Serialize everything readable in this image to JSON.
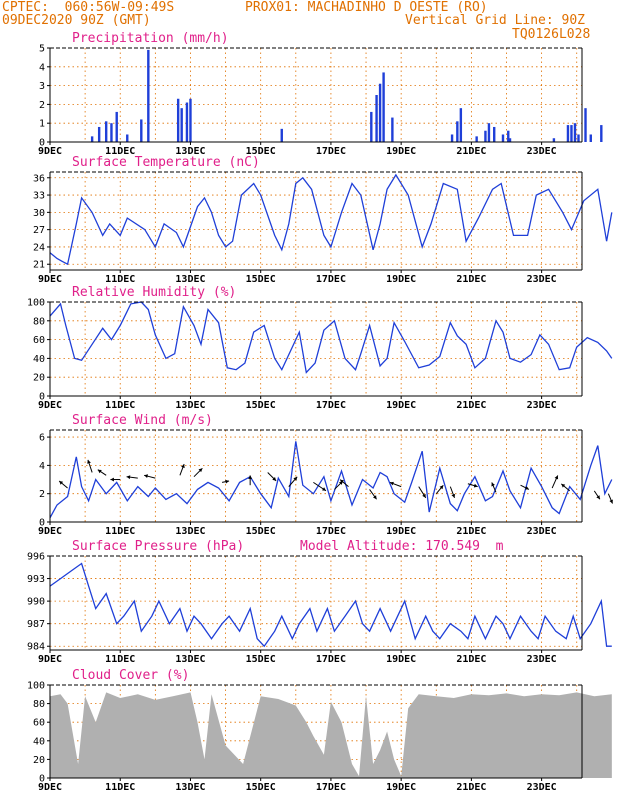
{
  "header": {
    "line1_left": "CPTEC:  060:56W-09:49S",
    "line1_right": "PROX01: MACHADINHO D OESTE (RO)",
    "line2_left": "09DEC2020 90Z (GMT)",
    "line2_right": "Vertical Grid Line: 90Z",
    "line3_right": "TQ0126L028",
    "model_altitude": "Model Altitude: 170.549  m",
    "colors": {
      "header": "#e07000",
      "title": "#e0208a",
      "series": "#1f3fd8",
      "cloud": "#b0b0b0",
      "grid": "#e07000"
    }
  },
  "chart_data": [
    {
      "type": "bar",
      "title": "Precipitation (mm/h)",
      "xlabels": [
        "9DEC",
        "11DEC",
        "13DEC",
        "15DEC",
        "17DEC",
        "19DEC",
        "21DEC",
        "23DEC"
      ],
      "ylim": [
        0,
        5
      ],
      "yticks": [
        0,
        1,
        2,
        3,
        4,
        5
      ],
      "bars": [
        [
          1.2,
          0.3
        ],
        [
          1.4,
          0.8
        ],
        [
          1.6,
          1.1
        ],
        [
          1.75,
          1.0
        ],
        [
          1.9,
          1.6
        ],
        [
          2.2,
          0.4
        ],
        [
          2.6,
          1.2
        ],
        [
          2.8,
          4.9
        ],
        [
          3.65,
          2.3
        ],
        [
          3.75,
          1.8
        ],
        [
          3.9,
          2.1
        ],
        [
          4.0,
          2.3
        ],
        [
          6.6,
          0.7
        ],
        [
          9.15,
          1.6
        ],
        [
          9.3,
          2.5
        ],
        [
          9.4,
          3.1
        ],
        [
          9.5,
          3.7
        ],
        [
          9.75,
          1.3
        ],
        [
          11.45,
          0.4
        ],
        [
          11.6,
          1.1
        ],
        [
          11.7,
          1.8
        ],
        [
          12.15,
          0.3
        ],
        [
          12.4,
          0.6
        ],
        [
          12.5,
          1.0
        ],
        [
          12.65,
          0.8
        ],
        [
          12.9,
          0.4
        ],
        [
          13.05,
          0.6
        ],
        [
          13.1,
          0.2
        ],
        [
          14.35,
          0.2
        ],
        [
          14.75,
          0.9
        ],
        [
          14.85,
          0.9
        ],
        [
          14.95,
          1.0
        ],
        [
          15.05,
          0.4
        ],
        [
          15.25,
          1.8
        ],
        [
          15.4,
          0.4
        ],
        [
          15.7,
          0.9
        ]
      ]
    },
    {
      "type": "line",
      "title": "Surface Temperature (nC)",
      "xlabels": [
        "9DEC",
        "11DEC",
        "13DEC",
        "15DEC",
        "17DEC",
        "19DEC",
        "21DEC",
        "23DEC"
      ],
      "ylim": [
        20,
        37
      ],
      "yticks": [
        21,
        24,
        27,
        30,
        33,
        36
      ],
      "x": [
        0,
        0.2,
        0.35,
        0.5,
        0.75,
        0.9,
        1.2,
        1.5,
        1.7,
        2.0,
        2.2,
        2.7,
        3.0,
        3.25,
        3.6,
        3.8,
        4.2,
        4.4,
        4.6,
        4.8,
        5.0,
        5.2,
        5.45,
        5.8,
        6.0,
        6.4,
        6.6,
        6.8,
        7.0,
        7.2,
        7.45,
        7.8,
        8.0,
        8.3,
        8.6,
        8.85,
        9.2,
        9.4,
        9.6,
        9.85,
        10.2,
        10.6,
        10.85,
        11.2,
        11.6,
        11.85,
        12.2,
        12.6,
        12.85,
        13.2,
        13.6,
        13.85,
        14.2,
        14.6,
        14.85,
        15.2,
        15.6,
        15.85,
        16.0
      ],
      "y": [
        23,
        22,
        21.5,
        21,
        28,
        32.5,
        30,
        26,
        28,
        26,
        29,
        27,
        24,
        28,
        26.5,
        24,
        31,
        32.5,
        30,
        26,
        24,
        25,
        33,
        35,
        33,
        26,
        23.5,
        28,
        35,
        36,
        34,
        26,
        24,
        30,
        35,
        33,
        23.5,
        28,
        34,
        36.5,
        33,
        24,
        28,
        35,
        34,
        25,
        29,
        34,
        35,
        26,
        26,
        33,
        34,
        30,
        27,
        32,
        34,
        25,
        30
      ]
    },
    {
      "type": "line",
      "title": "Relative Humidity (%)",
      "xlabels": [
        "9DEC",
        "11DEC",
        "13DEC",
        "15DEC",
        "17DEC",
        "19DEC",
        "21DEC",
        "23DEC"
      ],
      "ylim": [
        0,
        100
      ],
      "yticks": [
        0,
        20,
        40,
        60,
        80,
        100
      ],
      "x": [
        0,
        0.3,
        0.45,
        0.7,
        0.9,
        1.2,
        1.5,
        1.75,
        2.0,
        2.3,
        2.6,
        2.8,
        3.0,
        3.3,
        3.55,
        3.8,
        4.1,
        4.3,
        4.5,
        4.8,
        5.05,
        5.3,
        5.55,
        5.8,
        6.1,
        6.4,
        6.6,
        6.9,
        7.1,
        7.3,
        7.55,
        7.8,
        8.1,
        8.4,
        8.7,
        8.85,
        9.1,
        9.4,
        9.6,
        9.8,
        10.1,
        10.5,
        10.8,
        11.1,
        11.4,
        11.6,
        11.85,
        12.1,
        12.4,
        12.7,
        12.9,
        13.1,
        13.4,
        13.7,
        13.95,
        14.2,
        14.5,
        14.8,
        15.0,
        15.3,
        15.6,
        15.85,
        16.0
      ],
      "y": [
        85,
        98,
        75,
        40,
        38,
        55,
        72,
        60,
        75,
        98,
        100,
        92,
        65,
        40,
        45,
        95,
        75,
        55,
        92,
        78,
        30,
        28,
        35,
        68,
        75,
        40,
        28,
        52,
        68,
        25,
        35,
        70,
        80,
        40,
        28,
        45,
        75,
        32,
        40,
        78,
        58,
        30,
        33,
        42,
        78,
        64,
        55,
        30,
        40,
        80,
        68,
        40,
        36,
        44,
        65,
        55,
        28,
        30,
        52,
        62,
        57,
        48,
        40
      ]
    },
    {
      "type": "line",
      "title": "Surface Wind (m/s)",
      "xlabels": [
        "9DEC",
        "11DEC",
        "13DEC",
        "15DEC",
        "17DEC",
        "19DEC",
        "21DEC",
        "23DEC"
      ],
      "ylim": [
        0,
        6.5
      ],
      "yticks": [
        0,
        2,
        4,
        6
      ],
      "x": [
        0,
        0.2,
        0.5,
        0.75,
        0.9,
        1.1,
        1.3,
        1.6,
        1.9,
        2.2,
        2.5,
        2.8,
        3.0,
        3.3,
        3.6,
        3.9,
        4.2,
        4.5,
        4.8,
        5.1,
        5.4,
        5.7,
        6.0,
        6.3,
        6.5,
        6.8,
        7.0,
        7.2,
        7.5,
        7.8,
        8.0,
        8.3,
        8.6,
        8.9,
        9.2,
        9.4,
        9.6,
        9.8,
        10.1,
        10.3,
        10.6,
        10.8,
        11.1,
        11.4,
        11.6,
        11.8,
        12.1,
        12.4,
        12.6,
        12.9,
        13.1,
        13.4,
        13.7,
        14.0,
        14.3,
        14.5,
        14.8,
        15.1,
        15.4,
        15.6,
        15.8,
        16.0
      ],
      "y": [
        0.3,
        1.2,
        1.8,
        4.6,
        2.5,
        1.5,
        3.0,
        2.0,
        2.8,
        1.5,
        2.5,
        1.8,
        2.4,
        1.6,
        2.0,
        1.3,
        2.3,
        2.8,
        2.4,
        1.5,
        2.8,
        3.2,
        2.0,
        1.0,
        3.1,
        1.8,
        5.7,
        2.6,
        2.0,
        3.2,
        1.5,
        3.6,
        1.2,
        3.0,
        2.4,
        3.5,
        3.2,
        2.0,
        1.4,
        2.8,
        5.0,
        0.7,
        3.8,
        1.3,
        0.8,
        2.0,
        3.2,
        1.5,
        1.8,
        3.6,
        2.2,
        1.0,
        3.8,
        2.5,
        1.0,
        0.6,
        2.5,
        1.6,
        4.0,
        5.4,
        2.0,
        3.0
      ],
      "arrows": [
        [
          0.5,
          2.4,
          -0.6,
          0.5
        ],
        [
          1.2,
          3.5,
          -0.3,
          0.9
        ],
        [
          1.6,
          3.3,
          -0.6,
          0.4
        ],
        [
          2.0,
          3.0,
          -0.7,
          0.0
        ],
        [
          2.5,
          3.1,
          -0.8,
          0.1
        ],
        [
          3.0,
          3.1,
          -0.8,
          0.2
        ],
        [
          3.7,
          3.3,
          0.3,
          0.8
        ],
        [
          4.1,
          3.2,
          0.6,
          0.6
        ],
        [
          4.9,
          2.8,
          0.5,
          0.1
        ],
        [
          5.7,
          2.6,
          0.0,
          0.7
        ],
        [
          6.2,
          3.5,
          0.6,
          -0.6
        ],
        [
          6.8,
          2.5,
          0.6,
          0.7
        ],
        [
          7.5,
          2.8,
          0.9,
          -0.6
        ],
        [
          8.1,
          2.3,
          0.6,
          0.6
        ],
        [
          8.5,
          2.5,
          -0.6,
          0.5
        ],
        [
          9.1,
          2.3,
          0.5,
          -0.7
        ],
        [
          10.0,
          2.5,
          -0.8,
          0.3
        ],
        [
          10.5,
          2.5,
          0.5,
          -0.8
        ],
        [
          11.0,
          2.0,
          0.5,
          0.6
        ],
        [
          11.4,
          2.5,
          0.3,
          -0.8
        ],
        [
          11.9,
          2.7,
          0.7,
          -0.2
        ],
        [
          12.7,
          2.1,
          -0.3,
          0.7
        ],
        [
          13.4,
          2.6,
          0.6,
          -0.3
        ],
        [
          14.3,
          2.4,
          0.4,
          0.9
        ],
        [
          14.8,
          2.2,
          -0.6,
          0.5
        ],
        [
          15.5,
          2.2,
          0.4,
          -0.6
        ],
        [
          15.9,
          2.0,
          0.3,
          -0.7
        ]
      ]
    },
    {
      "type": "line",
      "title": "Surface Pressure (hPa)",
      "xlabels": [
        "9DEC",
        "11DEC",
        "13DEC",
        "15DEC",
        "17DEC",
        "19DEC",
        "21DEC",
        "23DEC"
      ],
      "ylim": [
        983.5,
        996
      ],
      "yticks": [
        984,
        987,
        990,
        993,
        996
      ],
      "x": [
        0,
        0.3,
        0.6,
        0.9,
        1.1,
        1.3,
        1.6,
        1.9,
        2.1,
        2.4,
        2.6,
        2.9,
        3.1,
        3.4,
        3.7,
        3.9,
        4.1,
        4.3,
        4.6,
        4.9,
        5.1,
        5.4,
        5.7,
        5.9,
        6.1,
        6.4,
        6.6,
        6.9,
        7.1,
        7.4,
        7.6,
        7.9,
        8.1,
        8.4,
        8.7,
        8.9,
        9.1,
        9.4,
        9.7,
        9.9,
        10.1,
        10.4,
        10.7,
        10.9,
        11.1,
        11.4,
        11.7,
        11.9,
        12.1,
        12.4,
        12.7,
        12.9,
        13.1,
        13.4,
        13.7,
        13.9,
        14.1,
        14.4,
        14.7,
        14.9,
        15.1,
        15.4,
        15.7,
        15.85,
        16.0
      ],
      "y": [
        992,
        993,
        994,
        995,
        992,
        989,
        991,
        987,
        988,
        990,
        986,
        988,
        990,
        987,
        989,
        986,
        988,
        987,
        985,
        987,
        988,
        986,
        989,
        985,
        984,
        986,
        988,
        985,
        987,
        989,
        986,
        989,
        986,
        988,
        990,
        987,
        986,
        989,
        986,
        988,
        990,
        985,
        988,
        986,
        985,
        987,
        986,
        985,
        988,
        985,
        988,
        987,
        985,
        988,
        986,
        985,
        988,
        986,
        985,
        988,
        985,
        987,
        990,
        984,
        984
      ]
    },
    {
      "type": "area",
      "title": "Cloud Cover (%)",
      "xlabels": [
        "9DEC",
        "11DEC",
        "13DEC",
        "15DEC",
        "17DEC",
        "19DEC",
        "21DEC",
        "23DEC"
      ],
      "ylim": [
        0,
        100
      ],
      "yticks": [
        0,
        20,
        40,
        60,
        80,
        100
      ],
      "x": [
        0,
        0.3,
        0.5,
        0.8,
        1.0,
        1.3,
        1.6,
        2.0,
        2.5,
        3.0,
        3.5,
        4.0,
        4.2,
        4.4,
        4.6,
        5.0,
        5.5,
        6.0,
        6.5,
        7.0,
        7.3,
        7.5,
        7.8,
        8.0,
        8.3,
        8.6,
        8.8,
        9.0,
        9.2,
        9.4,
        9.6,
        9.8,
        10.0,
        10.2,
        10.5,
        11.0,
        11.5,
        12.0,
        12.5,
        13.0,
        13.5,
        14.0,
        14.5,
        15.0,
        15.5,
        16.0
      ],
      "y": [
        88,
        90,
        80,
        15,
        88,
        60,
        92,
        86,
        90,
        84,
        88,
        92,
        60,
        20,
        90,
        35,
        15,
        88,
        85,
        78,
        60,
        45,
        25,
        82,
        60,
        15,
        2,
        88,
        15,
        30,
        50,
        20,
        2,
        75,
        90,
        88,
        86,
        90,
        89,
        91,
        88,
        90,
        89,
        92,
        88,
        90
      ]
    }
  ]
}
